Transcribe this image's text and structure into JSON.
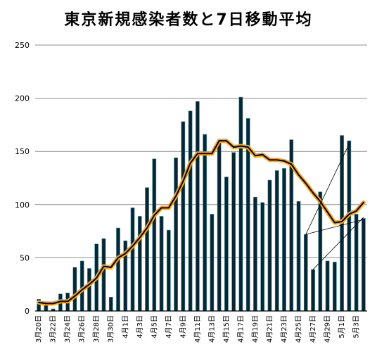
{
  "chart_data": {
    "type": "bar",
    "title": "東京新規感染者数と7日移動平均",
    "ylim": [
      0,
      250
    ],
    "y_ticks": [
      0,
      50,
      100,
      150,
      200,
      250
    ],
    "grid": true,
    "colors": {
      "bar": "#0a2430",
      "bar_edge": "#3a8fa3",
      "line": "#000000",
      "line_glow": "#f6a623"
    },
    "x_tick_labels": [
      "3月20日",
      "3月22日",
      "3月24日",
      "3月26日",
      "3月28日",
      "3月30日",
      "4月1日",
      "4月3日",
      "4月5日",
      "4月7日",
      "4月9日",
      "4月11日",
      "4月13日",
      "4月15日",
      "4月17日",
      "4月19日",
      "4月21日",
      "4月23日",
      "4月25日",
      "4月27日",
      "4月29日",
      "5月1日",
      "5月3日"
    ],
    "series": [
      {
        "type": "bar",
        "values": [
          11,
          7,
          2,
          16,
          17,
          41,
          47,
          40,
          63,
          68,
          13,
          78,
          66,
          97,
          89,
          116,
          143,
          89,
          76,
          144,
          178,
          188,
          197,
          166,
          91,
          161,
          126,
          149,
          201,
          181,
          107,
          102,
          123,
          132,
          134,
          161,
          103,
          72,
          39,
          112,
          47,
          46,
          165,
          160,
          91,
          87
        ]
      },
      {
        "type": "line",
        "values": [
          8,
          7,
          7,
          9,
          9,
          14,
          20,
          25,
          31,
          42,
          41,
          50,
          54,
          61,
          69,
          78,
          90,
          97,
          97,
          108,
          122,
          139,
          148,
          148,
          148,
          160,
          160,
          154,
          155,
          154,
          146,
          147,
          142,
          142,
          141,
          138,
          128,
          120,
          111,
          103,
          93,
          83,
          84,
          91,
          94,
          102
        ]
      }
    ]
  }
}
